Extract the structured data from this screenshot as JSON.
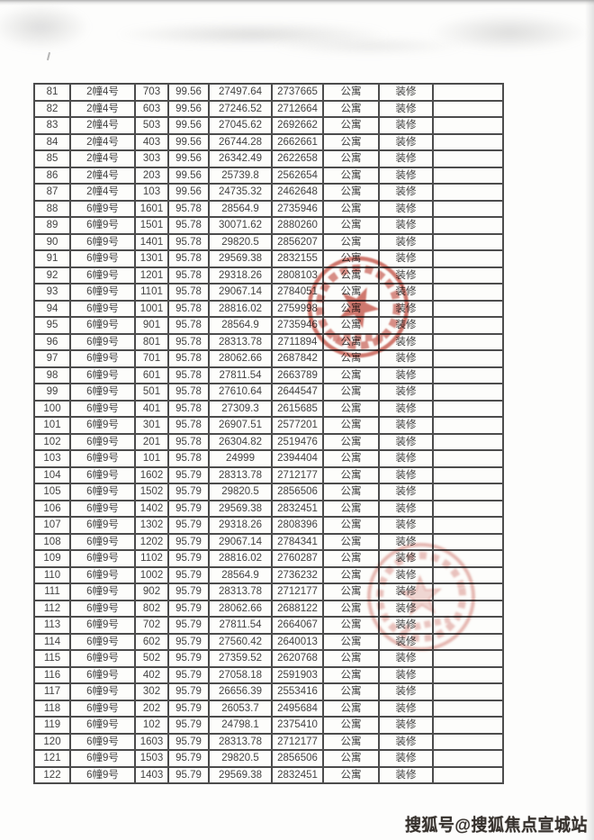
{
  "document": {
    "kind": "scanned-price-table-page",
    "watermark": {
      "text": "搜狐号@搜狐焦点宣城站",
      "color": "#36312d"
    }
  },
  "table": {
    "grid_line_color": "#4c4c4c",
    "cell_background": "#fdfdfb",
    "text_color": "#424242",
    "rows": [
      [
        "81",
        "2幢4号",
        "703",
        "99.56",
        "27497.64",
        "2737665",
        "公寓",
        "装修",
        ""
      ],
      [
        "82",
        "2幢4号",
        "603",
        "99.56",
        "27246.52",
        "2712664",
        "公寓",
        "装修",
        ""
      ],
      [
        "83",
        "2幢4号",
        "503",
        "99.56",
        "27045.62",
        "2692662",
        "公寓",
        "装修",
        ""
      ],
      [
        "84",
        "2幢4号",
        "403",
        "99.56",
        "26744.28",
        "2662661",
        "公寓",
        "装修",
        ""
      ],
      [
        "85",
        "2幢4号",
        "303",
        "99.56",
        "26342.49",
        "2622658",
        "公寓",
        "装修",
        ""
      ],
      [
        "86",
        "2幢4号",
        "203",
        "99.56",
        "25739.8",
        "2562654",
        "公寓",
        "装修",
        ""
      ],
      [
        "87",
        "2幢4号",
        "103",
        "99.56",
        "24735.32",
        "2462648",
        "公寓",
        "装修",
        ""
      ],
      [
        "88",
        "6幢9号",
        "1601",
        "95.78",
        "28564.9",
        "2735946",
        "公寓",
        "装修",
        ""
      ],
      [
        "89",
        "6幢9号",
        "1501",
        "95.78",
        "30071.62",
        "2880260",
        "公寓",
        "装修",
        ""
      ],
      [
        "90",
        "6幢9号",
        "1401",
        "95.78",
        "29820.5",
        "2856207",
        "公寓",
        "装修",
        ""
      ],
      [
        "91",
        "6幢9号",
        "1301",
        "95.78",
        "29569.38",
        "2832155",
        "公寓",
        "装修",
        ""
      ],
      [
        "92",
        "6幢9号",
        "1201",
        "95.78",
        "29318.26",
        "2808103",
        "公寓",
        "装修",
        ""
      ],
      [
        "93",
        "6幢9号",
        "1101",
        "95.78",
        "29067.14",
        "2784051",
        "公寓",
        "装修",
        ""
      ],
      [
        "94",
        "6幢9号",
        "1001",
        "95.78",
        "28816.02",
        "2759998",
        "公寓",
        "装修",
        ""
      ],
      [
        "95",
        "6幢9号",
        "901",
        "95.78",
        "28564.9",
        "2735946",
        "公寓",
        "装修",
        ""
      ],
      [
        "96",
        "6幢9号",
        "801",
        "95.78",
        "28313.78",
        "2711894",
        "公寓",
        "装修",
        ""
      ],
      [
        "97",
        "6幢9号",
        "701",
        "95.78",
        "28062.66",
        "2687842",
        "公寓",
        "装修",
        ""
      ],
      [
        "98",
        "6幢9号",
        "601",
        "95.78",
        "27811.54",
        "2663789",
        "公寓",
        "装修",
        ""
      ],
      [
        "99",
        "6幢9号",
        "501",
        "95.78",
        "27610.64",
        "2644547",
        "公寓",
        "装修",
        ""
      ],
      [
        "100",
        "6幢9号",
        "401",
        "95.78",
        "27309.3",
        "2615685",
        "公寓",
        "装修",
        ""
      ],
      [
        "101",
        "6幢9号",
        "301",
        "95.78",
        "26907.51",
        "2577201",
        "公寓",
        "装修",
        ""
      ],
      [
        "102",
        "6幢9号",
        "201",
        "95.78",
        "26304.82",
        "2519476",
        "公寓",
        "装修",
        ""
      ],
      [
        "103",
        "6幢9号",
        "101",
        "95.78",
        "24999",
        "2394404",
        "公寓",
        "装修",
        ""
      ],
      [
        "104",
        "6幢9号",
        "1602",
        "95.79",
        "28313.78",
        "2712177",
        "公寓",
        "装修",
        ""
      ],
      [
        "105",
        "6幢9号",
        "1502",
        "95.79",
        "29820.5",
        "2856506",
        "公寓",
        "装修",
        ""
      ],
      [
        "106",
        "6幢9号",
        "1402",
        "95.79",
        "29569.38",
        "2832451",
        "公寓",
        "装修",
        ""
      ],
      [
        "107",
        "6幢9号",
        "1302",
        "95.79",
        "29318.26",
        "2808396",
        "公寓",
        "装修",
        ""
      ],
      [
        "108",
        "6幢9号",
        "1202",
        "95.79",
        "29067.14",
        "2784341",
        "公寓",
        "装修",
        ""
      ],
      [
        "109",
        "6幢9号",
        "1102",
        "95.79",
        "28816.02",
        "2760287",
        "公寓",
        "装修",
        ""
      ],
      [
        "110",
        "6幢9号",
        "1002",
        "95.79",
        "28564.9",
        "2736232",
        "公寓",
        "装修",
        ""
      ],
      [
        "111",
        "6幢9号",
        "902",
        "95.79",
        "28313.78",
        "2712177",
        "公寓",
        "装修",
        ""
      ],
      [
        "112",
        "6幢9号",
        "802",
        "95.79",
        "28062.66",
        "2688122",
        "公寓",
        "装修",
        ""
      ],
      [
        "113",
        "6幢9号",
        "702",
        "95.79",
        "27811.54",
        "2664067",
        "公寓",
        "装修",
        ""
      ],
      [
        "114",
        "6幢9号",
        "602",
        "95.79",
        "27560.42",
        "2640013",
        "公寓",
        "装修",
        ""
      ],
      [
        "115",
        "6幢9号",
        "502",
        "95.79",
        "27359.52",
        "2620768",
        "公寓",
        "装修",
        ""
      ],
      [
        "116",
        "6幢9号",
        "402",
        "95.79",
        "27058.18",
        "2591903",
        "公寓",
        "装修",
        ""
      ],
      [
        "117",
        "6幢9号",
        "302",
        "95.79",
        "26656.39",
        "2553416",
        "公寓",
        "装修",
        ""
      ],
      [
        "118",
        "6幢9号",
        "202",
        "95.79",
        "26053.7",
        "2495684",
        "公寓",
        "装修",
        ""
      ],
      [
        "119",
        "6幢9号",
        "102",
        "95.79",
        "24798.1",
        "2375410",
        "公寓",
        "装修",
        ""
      ],
      [
        "120",
        "6幢9号",
        "1603",
        "95.79",
        "28313.78",
        "2712177",
        "公寓",
        "装修",
        ""
      ],
      [
        "121",
        "6幢9号",
        "1503",
        "95.79",
        "29820.5",
        "2856506",
        "公寓",
        "装修",
        ""
      ],
      [
        "122",
        "6幢9号",
        "1403",
        "95.79",
        "29569.38",
        "2832451",
        "公寓",
        "装修",
        ""
      ]
    ]
  },
  "stamps": [
    {
      "name": "official-seal-stamp-1",
      "color": "#bf4538",
      "opacity": 0.72
    },
    {
      "name": "official-seal-stamp-2",
      "color": "#bf4538",
      "opacity": 0.38
    }
  ]
}
